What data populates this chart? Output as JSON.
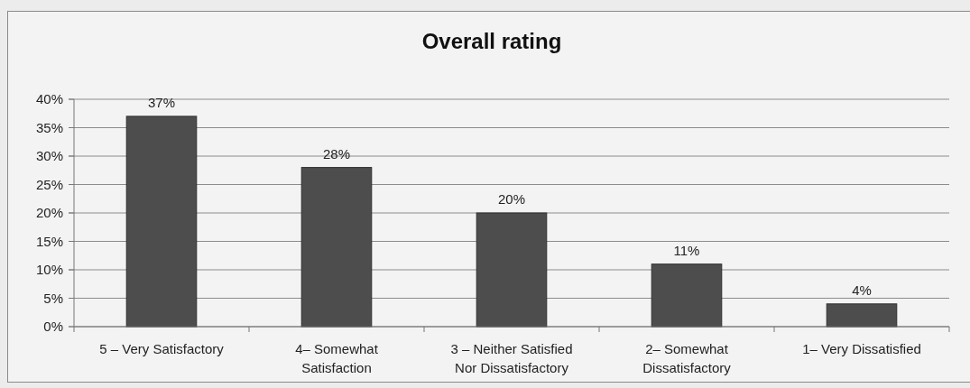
{
  "chart_data": {
    "type": "bar",
    "title": "Overall rating",
    "categories": [
      "5 – Very Satisfactory",
      "4– Somewhat Satisfaction",
      "3 – Neither Satisfied Nor Dissatisfactory",
      "2– Somewhat Dissatisfactory",
      "1– Very Dissatisfied"
    ],
    "values": [
      37,
      28,
      20,
      11,
      4
    ],
    "color": "#4d4d4d",
    "value_labels": [
      "37%",
      "28%",
      "20%",
      "11%",
      "4%"
    ],
    "ylim": [
      0,
      40
    ],
    "yticks": [
      {
        "value": 0,
        "label": "0%"
      },
      {
        "value": 5,
        "label": "5%"
      },
      {
        "value": 10,
        "label": "10%"
      },
      {
        "value": 15,
        "label": "15%"
      },
      {
        "value": 20,
        "label": "20%"
      },
      {
        "value": 25,
        "label": "25%"
      },
      {
        "value": 30,
        "label": "30%"
      },
      {
        "value": 35,
        "label": "35%"
      },
      {
        "value": 40,
        "label": "40%"
      }
    ],
    "grid": "y"
  }
}
